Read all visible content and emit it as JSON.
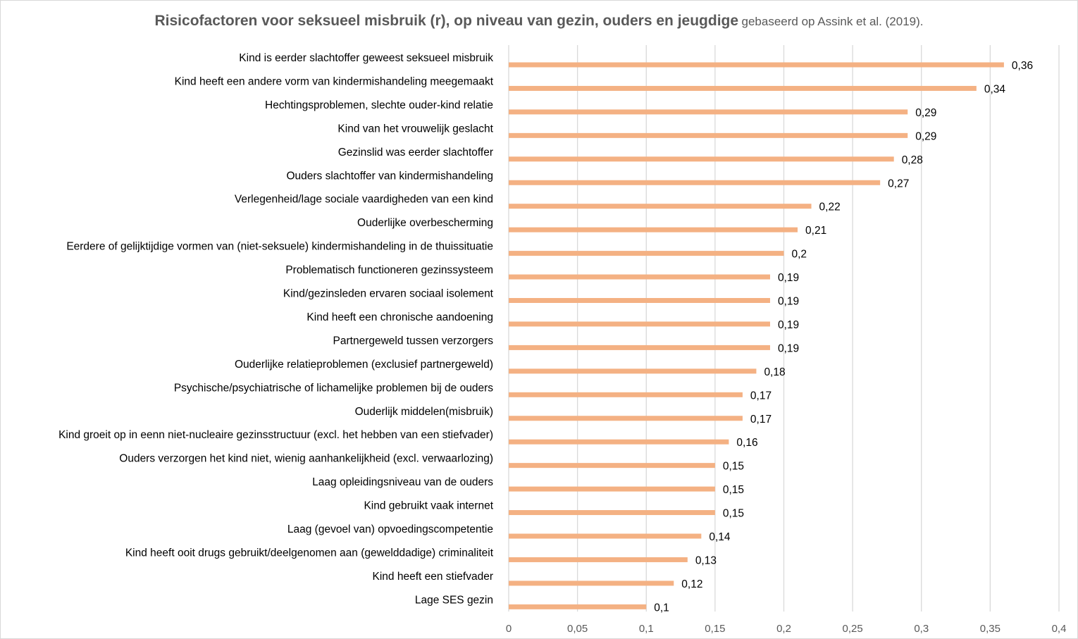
{
  "chart_data": {
    "type": "bar",
    "orientation": "horizontal",
    "title": "Risicofactoren voor seksueel misbruik (r), op niveau van gezin, ouders en jeugdige",
    "subtitle": "gebaseerd op Assink et al. (2019).",
    "categories": [
      "Kind is eerder slachtoffer geweest seksueel misbruik",
      "Kind heeft een andere vorm van kindermishandeling meegemaakt",
      "Hechtingsproblemen, slechte ouder-kind relatie",
      "Kind van het vrouwelijk geslacht",
      "Gezinslid was eerder slachtoffer",
      "Ouders slachtoffer van kindermishandeling",
      "Verlegenheid/lage sociale vaardigheden van een kind",
      "Ouderlijke overbescherming",
      "Eerdere of gelijktijdige vormen van (niet-seksuele) kindermishandeling in de thuissituatie",
      "Problematisch functioneren gezinssysteem",
      "Kind/gezinsleden ervaren sociaal isolement",
      "Kind heeft een chronische aandoening",
      "Partnergeweld tussen verzorgers",
      "Ouderlijke relatieproblemen (exclusief partnergeweld)",
      "Psychische/psychiatrische of lichamelijke problemen bij de ouders",
      "Ouderlijk middelen(misbruik)",
      "Kind groeit op in eenn niet-nucleaire gezinsstructuur (excl. het hebben van een stiefvader)",
      "Ouders verzorgen het kind niet, wienig aanhankelijkheid (excl. verwaarlozing)",
      "Laag opleidingsniveau van de ouders",
      "Kind gebruikt vaak internet",
      "Laag (gevoel van) opvoedingscompetentie",
      "Kind heeft ooit drugs gebruikt/deelgenomen aan (gewelddadige) criminaliteit",
      "Kind heeft een stiefvader",
      "Lage SES gezin"
    ],
    "values": [
      0.36,
      0.34,
      0.29,
      0.29,
      0.28,
      0.27,
      0.22,
      0.21,
      0.2,
      0.19,
      0.19,
      0.19,
      0.19,
      0.18,
      0.17,
      0.17,
      0.16,
      0.15,
      0.15,
      0.15,
      0.14,
      0.13,
      0.12,
      0.1
    ],
    "value_labels": [
      "0,36",
      "0,34",
      "0,29",
      "0,29",
      "0,28",
      "0,27",
      "0,22",
      "0,21",
      "0,2",
      "0,19",
      "0,19",
      "0,19",
      "0,19",
      "0,18",
      "0,17",
      "0,17",
      "0,16",
      "0,15",
      "0,15",
      "0,15",
      "0,14",
      "0,13",
      "0,12",
      "0,1"
    ],
    "xlim": [
      0,
      0.4
    ],
    "x_ticks": [
      0,
      0.05,
      0.1,
      0.15,
      0.2,
      0.25,
      0.3,
      0.35,
      0.4
    ],
    "x_tick_labels": [
      "0",
      "0,05",
      "0,1",
      "0,15",
      "0,2",
      "0,25",
      "0,3",
      "0,35",
      "0,4"
    ],
    "grid": "vertical",
    "legend": "none",
    "bar_color": "#f4b183",
    "grid_color": "#d9d9d9",
    "title_color": "#595959"
  }
}
